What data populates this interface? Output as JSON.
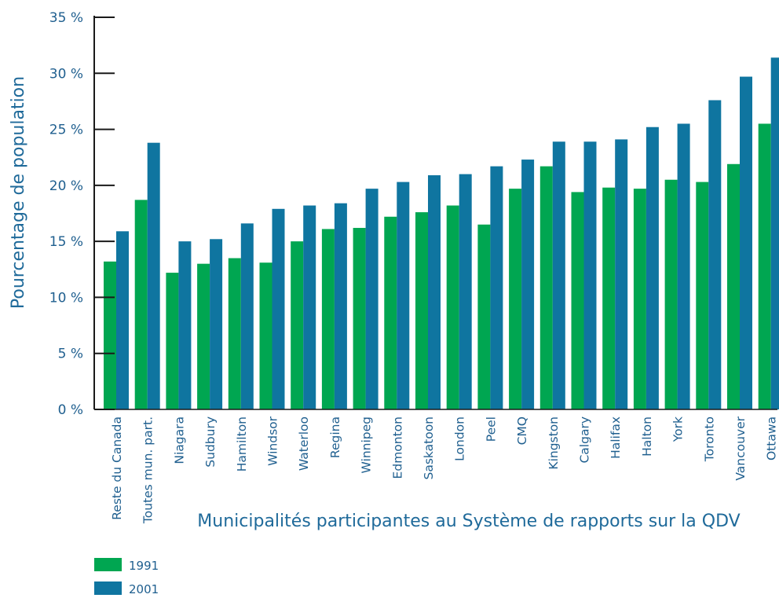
{
  "chart_data": {
    "type": "bar",
    "ylabel": "Pourcentage de population",
    "xlabel": "Municipalités participantes au Système de rapports sur la QDV",
    "ylim": [
      0,
      35
    ],
    "yticks": [
      "0 %",
      "5 %",
      "10 %",
      "15 %",
      "20 %",
      "25 %",
      "30 %",
      "35 %"
    ],
    "grid": false,
    "legend_position": "bottom-left",
    "categories": [
      "Reste du Canada",
      "Toutes mun. part.",
      "Niagara",
      "Sudbury",
      "Hamilton",
      "Windsor",
      "Waterloo",
      "Regina",
      "Winnipeg",
      "Edmonton",
      "Saskatoon",
      "London",
      "Peel",
      "CMQ",
      "Kingston",
      "Calgary",
      "Halifax",
      "Halton",
      "York",
      "Toronto",
      "Vancouver",
      "Ottawa"
    ],
    "series": [
      {
        "name": "1991",
        "color": "#00a651",
        "values": [
          13.2,
          18.7,
          12.2,
          13.0,
          13.5,
          13.1,
          15.0,
          16.1,
          16.2,
          17.2,
          17.6,
          18.2,
          16.5,
          19.7,
          21.7,
          19.4,
          19.8,
          19.7,
          20.5,
          20.3,
          21.9,
          25.5
        ]
      },
      {
        "name": "2001",
        "color": "#0f75a0",
        "values": [
          15.9,
          23.8,
          15.0,
          15.2,
          16.6,
          17.9,
          18.2,
          18.4,
          19.7,
          20.3,
          20.9,
          21.0,
          21.7,
          22.3,
          23.9,
          23.9,
          24.1,
          25.2,
          25.5,
          27.6,
          29.7,
          31.4
        ]
      }
    ]
  }
}
